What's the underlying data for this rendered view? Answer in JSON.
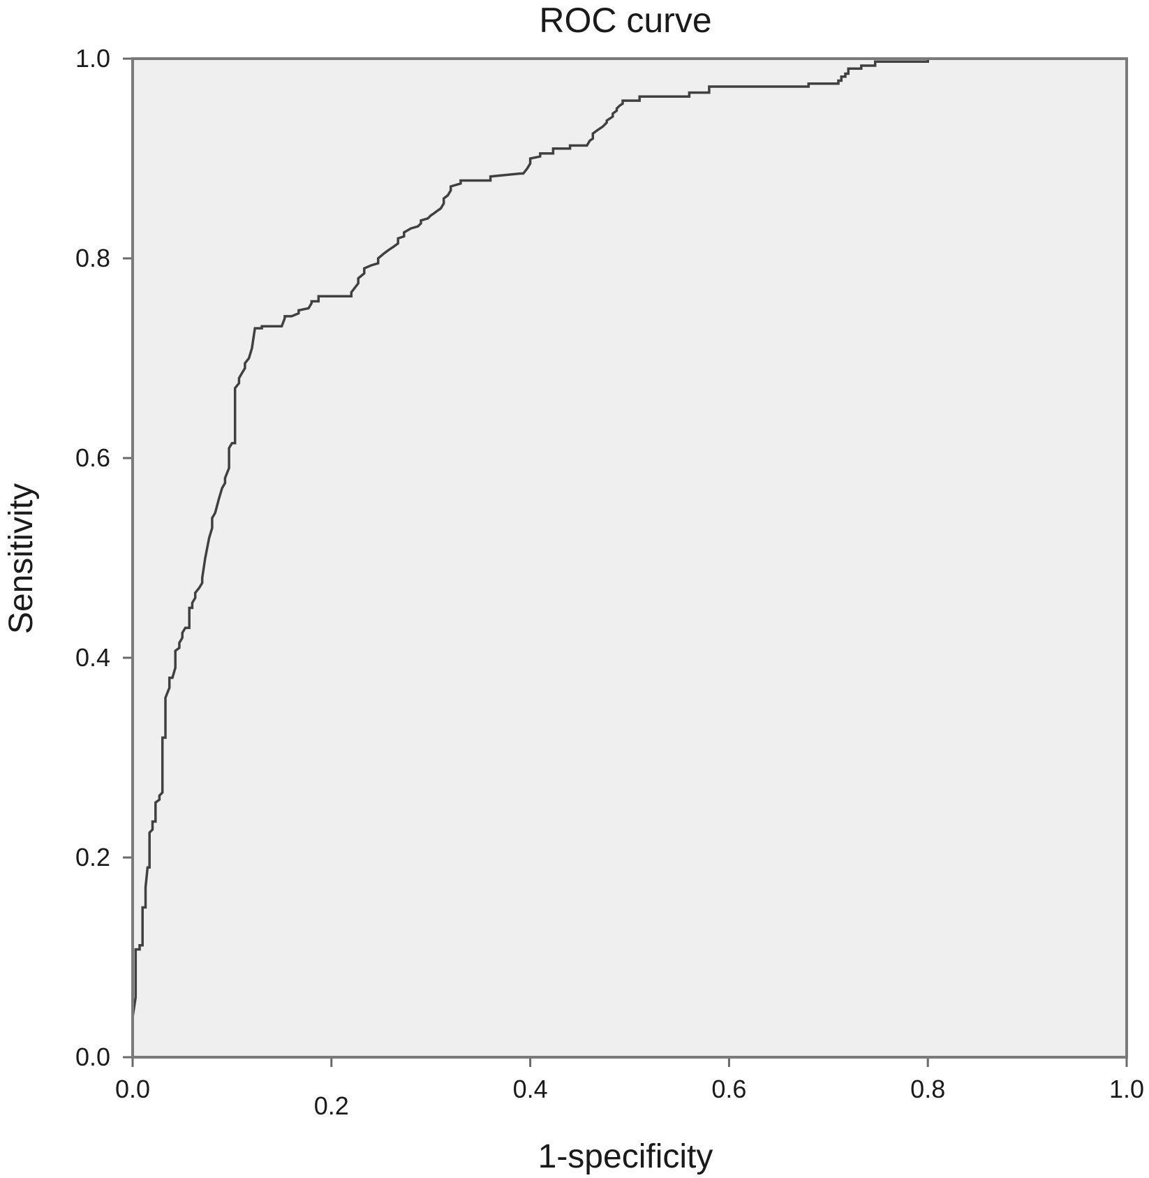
{
  "chart_data": {
    "type": "line",
    "title": "ROC curve",
    "xlabel": "1-specificity",
    "ylabel": "Sensitivity",
    "xlim": [
      0,
      1
    ],
    "ylim": [
      0,
      1
    ],
    "grid": false,
    "x_ticks": [
      "0.0",
      "0.2",
      "0.4",
      "0.6",
      "0.8",
      "1.0"
    ],
    "y_ticks": [
      "0.0",
      "0.2",
      "0.4",
      "0.6",
      "0.8",
      "1.0"
    ],
    "colors": {
      "background": "#efefef",
      "curve": "#404040",
      "frame": "#7a7a7a"
    },
    "series": [
      {
        "x": [
          0.0,
          0.0,
          0.003,
          0.003,
          0.007,
          0.007,
          0.01,
          0.01,
          0.013,
          0.013,
          0.015,
          0.017,
          0.017,
          0.02,
          0.02,
          0.023,
          0.023,
          0.027,
          0.027,
          0.03,
          0.03,
          0.033,
          0.033,
          0.037,
          0.037,
          0.04,
          0.043,
          0.043,
          0.047,
          0.047,
          0.05,
          0.05,
          0.053,
          0.057,
          0.057,
          0.06,
          0.06,
          0.063,
          0.063,
          0.067,
          0.07,
          0.07,
          0.073,
          0.077,
          0.08,
          0.08,
          0.083,
          0.087,
          0.09,
          0.093,
          0.093,
          0.097,
          0.097,
          0.1,
          0.103,
          0.103,
          0.107,
          0.107,
          0.11,
          0.113,
          0.113,
          0.117,
          0.12,
          0.123,
          0.127,
          0.13,
          0.13,
          0.133,
          0.15,
          0.153,
          0.153,
          0.157,
          0.16,
          0.167,
          0.167,
          0.177,
          0.18,
          0.18,
          0.187,
          0.187,
          0.203,
          0.22,
          0.22,
          0.227,
          0.227,
          0.233,
          0.233,
          0.24,
          0.247,
          0.247,
          0.253,
          0.257,
          0.26,
          0.263,
          0.267,
          0.267,
          0.273,
          0.273,
          0.28,
          0.287,
          0.29,
          0.29,
          0.297,
          0.3,
          0.303,
          0.307,
          0.31,
          0.313,
          0.313,
          0.317,
          0.32,
          0.32,
          0.33,
          0.33,
          0.36,
          0.36,
          0.39,
          0.393,
          0.397,
          0.4,
          0.4,
          0.41,
          0.41,
          0.423,
          0.423,
          0.44,
          0.44,
          0.453,
          0.457,
          0.46,
          0.463,
          0.463,
          0.467,
          0.473,
          0.477,
          0.477,
          0.483,
          0.483,
          0.487,
          0.487,
          0.49,
          0.493,
          0.493,
          0.51,
          0.51,
          0.56,
          0.56,
          0.58,
          0.58,
          0.68,
          0.68,
          0.71,
          0.71,
          0.713,
          0.713,
          0.717,
          0.717,
          0.72,
          0.72,
          0.733,
          0.733,
          0.747,
          0.747,
          0.8,
          0.8,
          1.0
        ],
        "y": [
          0.0,
          0.04,
          0.06,
          0.108,
          0.108,
          0.112,
          0.112,
          0.15,
          0.15,
          0.17,
          0.19,
          0.19,
          0.225,
          0.228,
          0.236,
          0.236,
          0.255,
          0.258,
          0.262,
          0.265,
          0.32,
          0.32,
          0.36,
          0.37,
          0.38,
          0.38,
          0.39,
          0.407,
          0.41,
          0.415,
          0.42,
          0.425,
          0.43,
          0.43,
          0.45,
          0.45,
          0.455,
          0.46,
          0.465,
          0.47,
          0.475,
          0.48,
          0.5,
          0.52,
          0.53,
          0.54,
          0.545,
          0.56,
          0.57,
          0.575,
          0.58,
          0.59,
          0.61,
          0.615,
          0.615,
          0.67,
          0.675,
          0.68,
          0.685,
          0.69,
          0.695,
          0.7,
          0.71,
          0.73,
          0.73,
          0.73,
          0.732,
          0.732,
          0.732,
          0.74,
          0.742,
          0.742,
          0.742,
          0.745,
          0.748,
          0.75,
          0.755,
          0.757,
          0.757,
          0.762,
          0.762,
          0.762,
          0.766,
          0.775,
          0.78,
          0.785,
          0.79,
          0.793,
          0.795,
          0.8,
          0.805,
          0.808,
          0.81,
          0.812,
          0.815,
          0.82,
          0.822,
          0.826,
          0.83,
          0.832,
          0.835,
          0.838,
          0.84,
          0.843,
          0.845,
          0.848,
          0.85,
          0.855,
          0.86,
          0.863,
          0.868,
          0.872,
          0.875,
          0.878,
          0.878,
          0.882,
          0.885,
          0.885,
          0.89,
          0.895,
          0.9,
          0.902,
          0.905,
          0.905,
          0.91,
          0.91,
          0.913,
          0.913,
          0.913,
          0.918,
          0.92,
          0.925,
          0.928,
          0.932,
          0.936,
          0.938,
          0.942,
          0.945,
          0.948,
          0.95,
          0.953,
          0.955,
          0.958,
          0.958,
          0.962,
          0.962,
          0.966,
          0.966,
          0.972,
          0.972,
          0.975,
          0.975,
          0.978,
          0.978,
          0.982,
          0.982,
          0.985,
          0.985,
          0.99,
          0.99,
          0.993,
          0.993,
          0.997,
          0.997,
          1.0,
          1.0
        ]
      }
    ]
  }
}
